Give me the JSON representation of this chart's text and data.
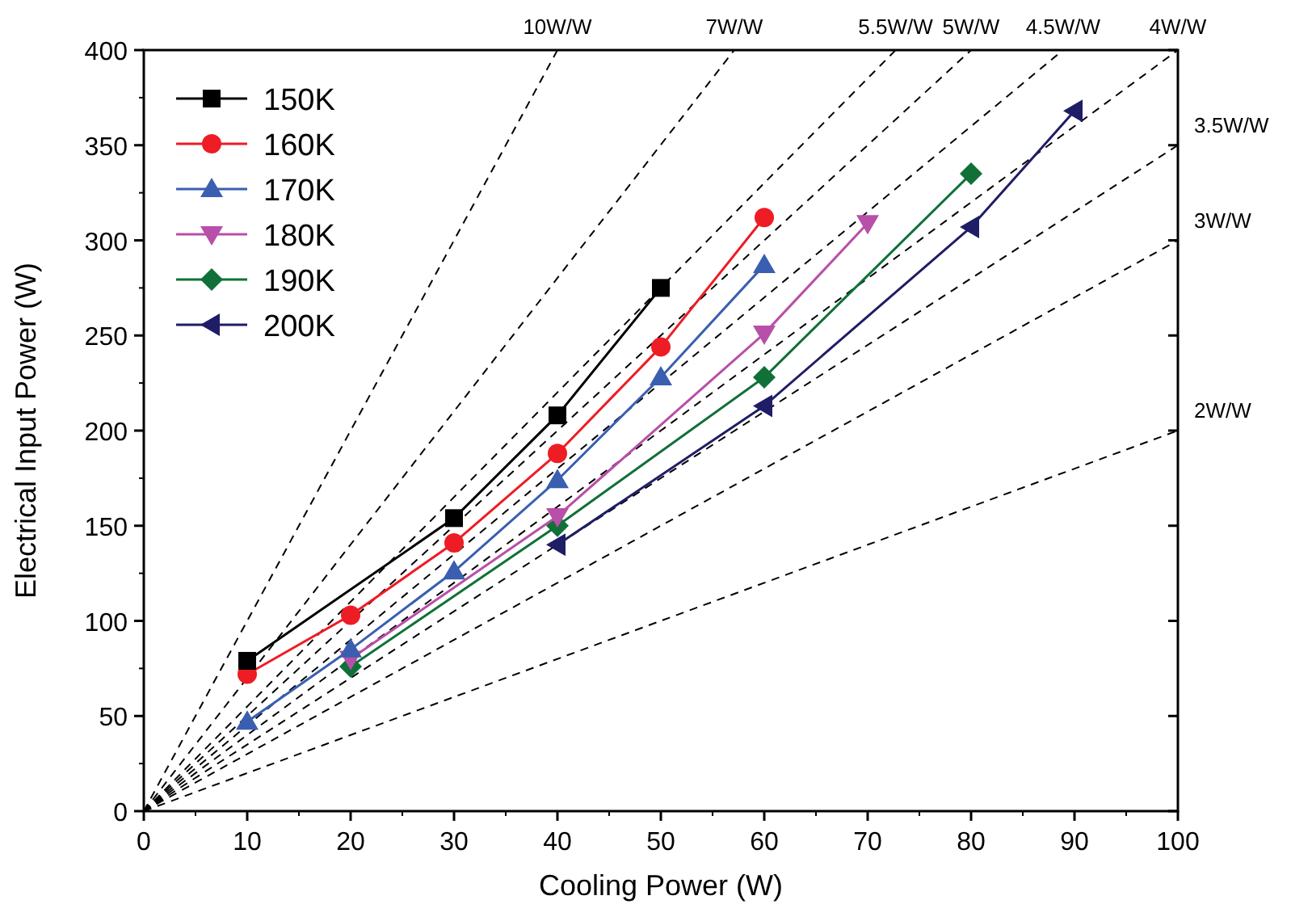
{
  "chart_data": {
    "type": "line",
    "xlabel": "Cooling Power  (W)",
    "ylabel": "Electrical Input Power  (W)",
    "xlim": [
      0,
      100
    ],
    "xticks": [
      0,
      10,
      20,
      30,
      40,
      50,
      60,
      70,
      80,
      90,
      100
    ],
    "ylim": [
      0,
      400
    ],
    "yticks": [
      0,
      50,
      100,
      150,
      200,
      250,
      300,
      350,
      400
    ],
    "grid": false,
    "legend": "top left",
    "series": [
      {
        "name": "150K",
        "color": "#000000",
        "marker": "square",
        "x": [
          10,
          30,
          40,
          50
        ],
        "values": [
          79,
          154,
          208,
          275
        ]
      },
      {
        "name": "160K",
        "color": "#ee1c24",
        "marker": "circle",
        "x": [
          10,
          20,
          30,
          40,
          50,
          60
        ],
        "values": [
          72,
          103,
          141,
          188,
          244,
          312
        ]
      },
      {
        "name": "170K",
        "color": "#3a5fb0",
        "marker": "triangle",
        "x": [
          10,
          20,
          30,
          40,
          50,
          60
        ],
        "values": [
          47,
          85,
          126,
          174,
          228,
          287
        ]
      },
      {
        "name": "180K",
        "color": "#b84fa8",
        "marker": "triangle-down",
        "x": [
          20,
          40,
          60,
          70
        ],
        "values": [
          80,
          155,
          251,
          309
        ]
      },
      {
        "name": "190K",
        "color": "#117038",
        "marker": "diamond",
        "x": [
          20,
          40,
          60,
          80
        ],
        "values": [
          76,
          150,
          228,
          335
        ]
      },
      {
        "name": "200K",
        "color": "#1f1d66",
        "marker": "triangle-left",
        "x": [
          40,
          60,
          80,
          90
        ],
        "values": [
          140,
          213,
          307,
          368
        ]
      },
      {
        "name": "10W/W",
        "color": "#000000",
        "marker": "none",
        "line_style": "dashed",
        "x": [
          0,
          40
        ],
        "values": [
          0,
          400
        ]
      },
      {
        "name": "7W/W",
        "color": "#000000",
        "marker": "none",
        "line_style": "dashed",
        "x": [
          0,
          57.1
        ],
        "values": [
          0,
          400
        ]
      },
      {
        "name": "5.5W/W",
        "color": "#000000",
        "marker": "none",
        "line_style": "dashed",
        "x": [
          0,
          72.7
        ],
        "values": [
          0,
          400
        ]
      },
      {
        "name": "5W/W",
        "color": "#000000",
        "marker": "none",
        "line_style": "dashed",
        "x": [
          0,
          80
        ],
        "values": [
          0,
          400
        ]
      },
      {
        "name": "4.5W/W",
        "color": "#000000",
        "marker": "none",
        "line_style": "dashed",
        "x": [
          0,
          88.9
        ],
        "values": [
          0,
          400
        ]
      },
      {
        "name": "4W/W",
        "color": "#000000",
        "marker": "none",
        "line_style": "dashed",
        "x": [
          0,
          100
        ],
        "values": [
          0,
          400
        ]
      },
      {
        "name": "3.5W/W",
        "color": "#000000",
        "marker": "none",
        "line_style": "dashed",
        "x": [
          0,
          100
        ],
        "values": [
          0,
          350
        ]
      },
      {
        "name": "3W/W",
        "color": "#000000",
        "marker": "none",
        "line_style": "dashed",
        "x": [
          0,
          100
        ],
        "values": [
          0,
          300
        ]
      },
      {
        "name": "2W/W",
        "color": "#000000",
        "marker": "none",
        "line_style": "dashed",
        "x": [
          0,
          100
        ],
        "values": [
          0,
          200
        ]
      }
    ]
  }
}
